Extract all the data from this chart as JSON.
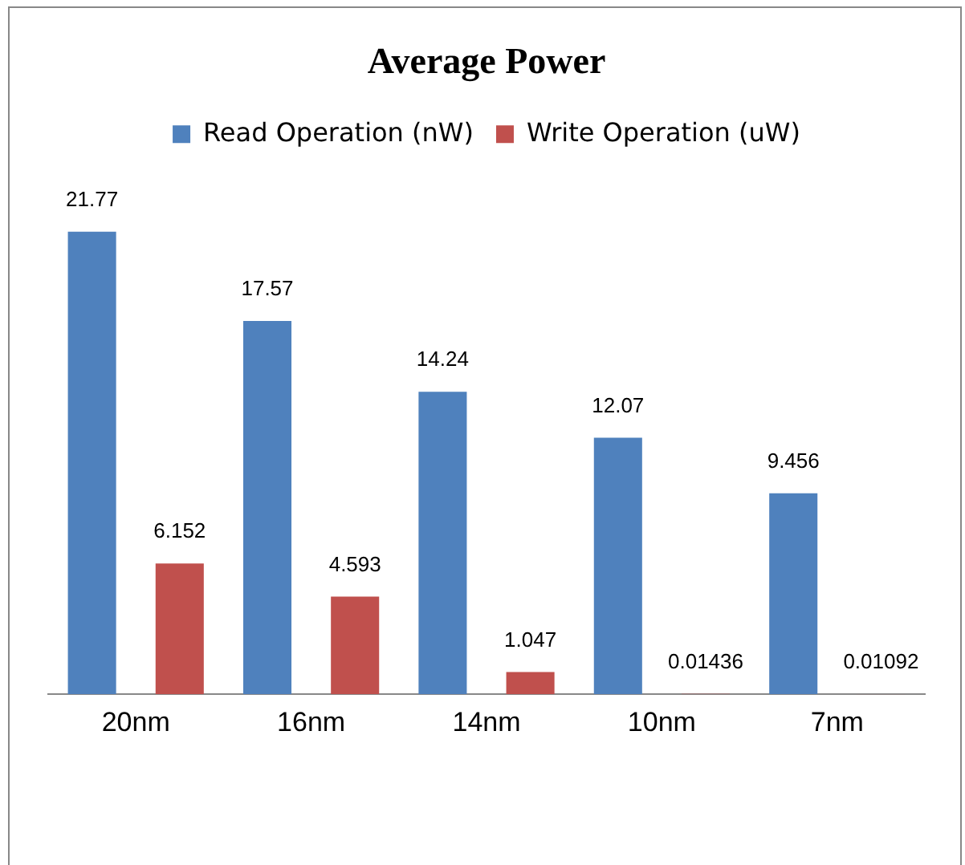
{
  "chart_data": {
    "type": "bar",
    "title": "Average Power",
    "categories": [
      "20nm",
      "16nm",
      "14nm",
      "10nm",
      "7nm"
    ],
    "series": [
      {
        "name": "Read Operation (nW)",
        "color": "#4f81bd",
        "values": [
          21.77,
          17.57,
          14.24,
          12.07,
          9.456
        ]
      },
      {
        "name": "Write Operation (uW)",
        "color": "#c0504d",
        "values": [
          6.152,
          4.593,
          1.047,
          0.01436,
          0.01092
        ]
      }
    ],
    "data_labels": true,
    "legend": "top",
    "tick_labels": "x"
  }
}
